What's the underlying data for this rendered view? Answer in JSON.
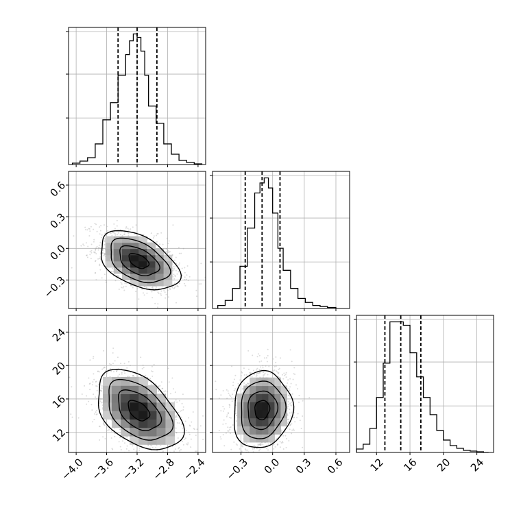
{
  "chart_data": {
    "type": "corner",
    "title": "",
    "parameters": [
      {
        "id": "p0",
        "range": [
          -4.1,
          -2.3
        ],
        "ticks": [
          -4.0,
          -3.6,
          -3.2,
          -2.8,
          -2.4
        ],
        "tick_labels": [
          "−4.0",
          "−3.6",
          "−3.2",
          "−2.8",
          "−2.4"
        ],
        "quantiles": [
          -3.45,
          -3.2,
          -2.94
        ]
      },
      {
        "id": "p1",
        "range": [
          -0.57,
          0.73
        ],
        "ticks": [
          -0.3,
          0.0,
          0.3,
          0.6
        ],
        "tick_labels": [
          "−0.3",
          "0.0",
          "0.3",
          "0.6"
        ],
        "quantiles": [
          -0.26,
          -0.1,
          0.07
        ]
      },
      {
        "id": "p2",
        "range": [
          9.6,
          26.0
        ],
        "ticks": [
          12,
          16,
          20,
          24
        ],
        "tick_labels": [
          "12",
          "16",
          "20",
          "24"
        ],
        "quantiles": [
          13.0,
          14.9,
          17.3
        ]
      }
    ],
    "histograms": [
      {
        "param": "p0",
        "bin_edges": [
          -4.05,
          -3.95,
          -3.85,
          -3.75,
          -3.65,
          -3.55,
          -3.45,
          -3.35,
          -3.3,
          -3.25,
          -3.2,
          -3.15,
          -3.1,
          -3.05,
          -2.95,
          -2.85,
          -2.75,
          -2.65,
          -2.55,
          -2.45,
          -2.35
        ],
        "counts": [
          2,
          5,
          10,
          30,
          65,
          90,
          130,
          160,
          180,
          190,
          185,
          165,
          130,
          85,
          60,
          30,
          15,
          6,
          3,
          1
        ]
      },
      {
        "param": "p1",
        "bin_edges": [
          -0.52,
          -0.45,
          -0.38,
          -0.31,
          -0.24,
          -0.17,
          -0.12,
          -0.08,
          -0.04,
          0.0,
          0.05,
          0.1,
          0.17,
          0.24,
          0.31,
          0.38,
          0.45,
          0.52,
          0.6
        ],
        "counts": [
          3,
          8,
          20,
          42,
          80,
          115,
          125,
          130,
          120,
          95,
          60,
          38,
          20,
          10,
          6,
          3,
          2,
          1
        ]
      },
      {
        "param": "p2",
        "bin_edges": [
          9.6,
          10.4,
          11.2,
          12.0,
          12.8,
          13.6,
          14.4,
          15.2,
          16.0,
          16.8,
          17.6,
          18.4,
          19.2,
          20.0,
          20.8,
          21.6,
          22.4,
          23.2,
          24.0,
          24.8,
          25.4
        ],
        "counts": [
          5,
          12,
          35,
          80,
          130,
          190,
          190,
          185,
          145,
          110,
          80,
          55,
          32,
          18,
          10,
          6,
          3,
          2,
          1,
          0
        ]
      }
    ],
    "panels": [
      {
        "x": "p0",
        "y": "p1",
        "center": [
          -3.18,
          -0.12
        ],
        "sd": [
          0.26,
          0.14
        ],
        "correlation": -0.45,
        "levels_sigma": [
          0.5,
          1.0,
          1.5,
          2.0
        ]
      },
      {
        "x": "p0",
        "y": "p2",
        "center": [
          -3.18,
          14.6
        ],
        "sd": [
          0.28,
          2.4
        ],
        "correlation": -0.45,
        "levels_sigma": [
          0.5,
          1.0,
          1.5,
          2.0
        ]
      },
      {
        "x": "p1",
        "y": "p2",
        "center": [
          -0.1,
          14.7
        ],
        "sd": [
          0.14,
          2.3
        ],
        "correlation": 0.08,
        "levels_sigma": [
          0.5,
          1.0,
          1.5,
          2.0
        ]
      }
    ],
    "grid": true,
    "legend": "none"
  }
}
